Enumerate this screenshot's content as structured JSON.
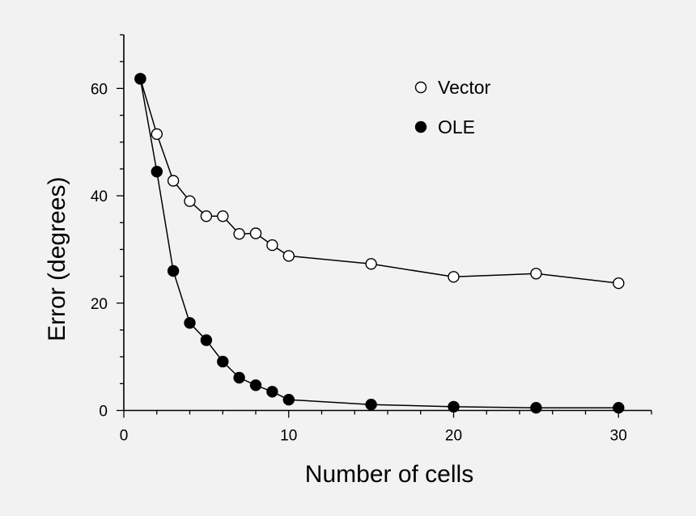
{
  "chart_data": {
    "type": "line",
    "xlabel": "Number of cells",
    "ylabel": "Error (degrees)",
    "xlim": [
      0,
      32
    ],
    "ylim": [
      0,
      70
    ],
    "x_major_ticks": [
      0,
      10,
      20,
      30
    ],
    "x_minor_ticks": [
      2,
      4,
      6,
      8,
      12,
      14,
      16,
      18,
      22,
      24,
      26,
      28,
      32
    ],
    "y_major_ticks": [
      0,
      20,
      40,
      60
    ],
    "y_minor_ticks": [
      5,
      10,
      15,
      25,
      30,
      35,
      45,
      50,
      55,
      65,
      70
    ],
    "grid": false,
    "legend_position": "top-right",
    "series": [
      {
        "name": "Vector",
        "marker": "open-circle",
        "x": [
          1,
          2,
          3,
          4,
          5,
          6,
          7,
          8,
          9,
          10,
          15,
          20,
          25,
          30
        ],
        "values": [
          61.8,
          51.5,
          42.8,
          39.0,
          36.2,
          36.2,
          32.9,
          33.0,
          30.8,
          28.8,
          27.3,
          24.9,
          25.5,
          23.7
        ]
      },
      {
        "name": "OLE",
        "marker": "filled-circle",
        "x": [
          1,
          2,
          3,
          4,
          5,
          6,
          7,
          8,
          9,
          10,
          15,
          20,
          25,
          30
        ],
        "values": [
          61.8,
          44.5,
          26.0,
          16.3,
          13.1,
          9.1,
          6.1,
          4.7,
          3.5,
          2.0,
          1.1,
          0.7,
          0.5,
          0.5
        ]
      }
    ],
    "colors": {
      "background": "#f2f2f2",
      "ink": "#000000",
      "open_fill": "#ffffff"
    }
  }
}
